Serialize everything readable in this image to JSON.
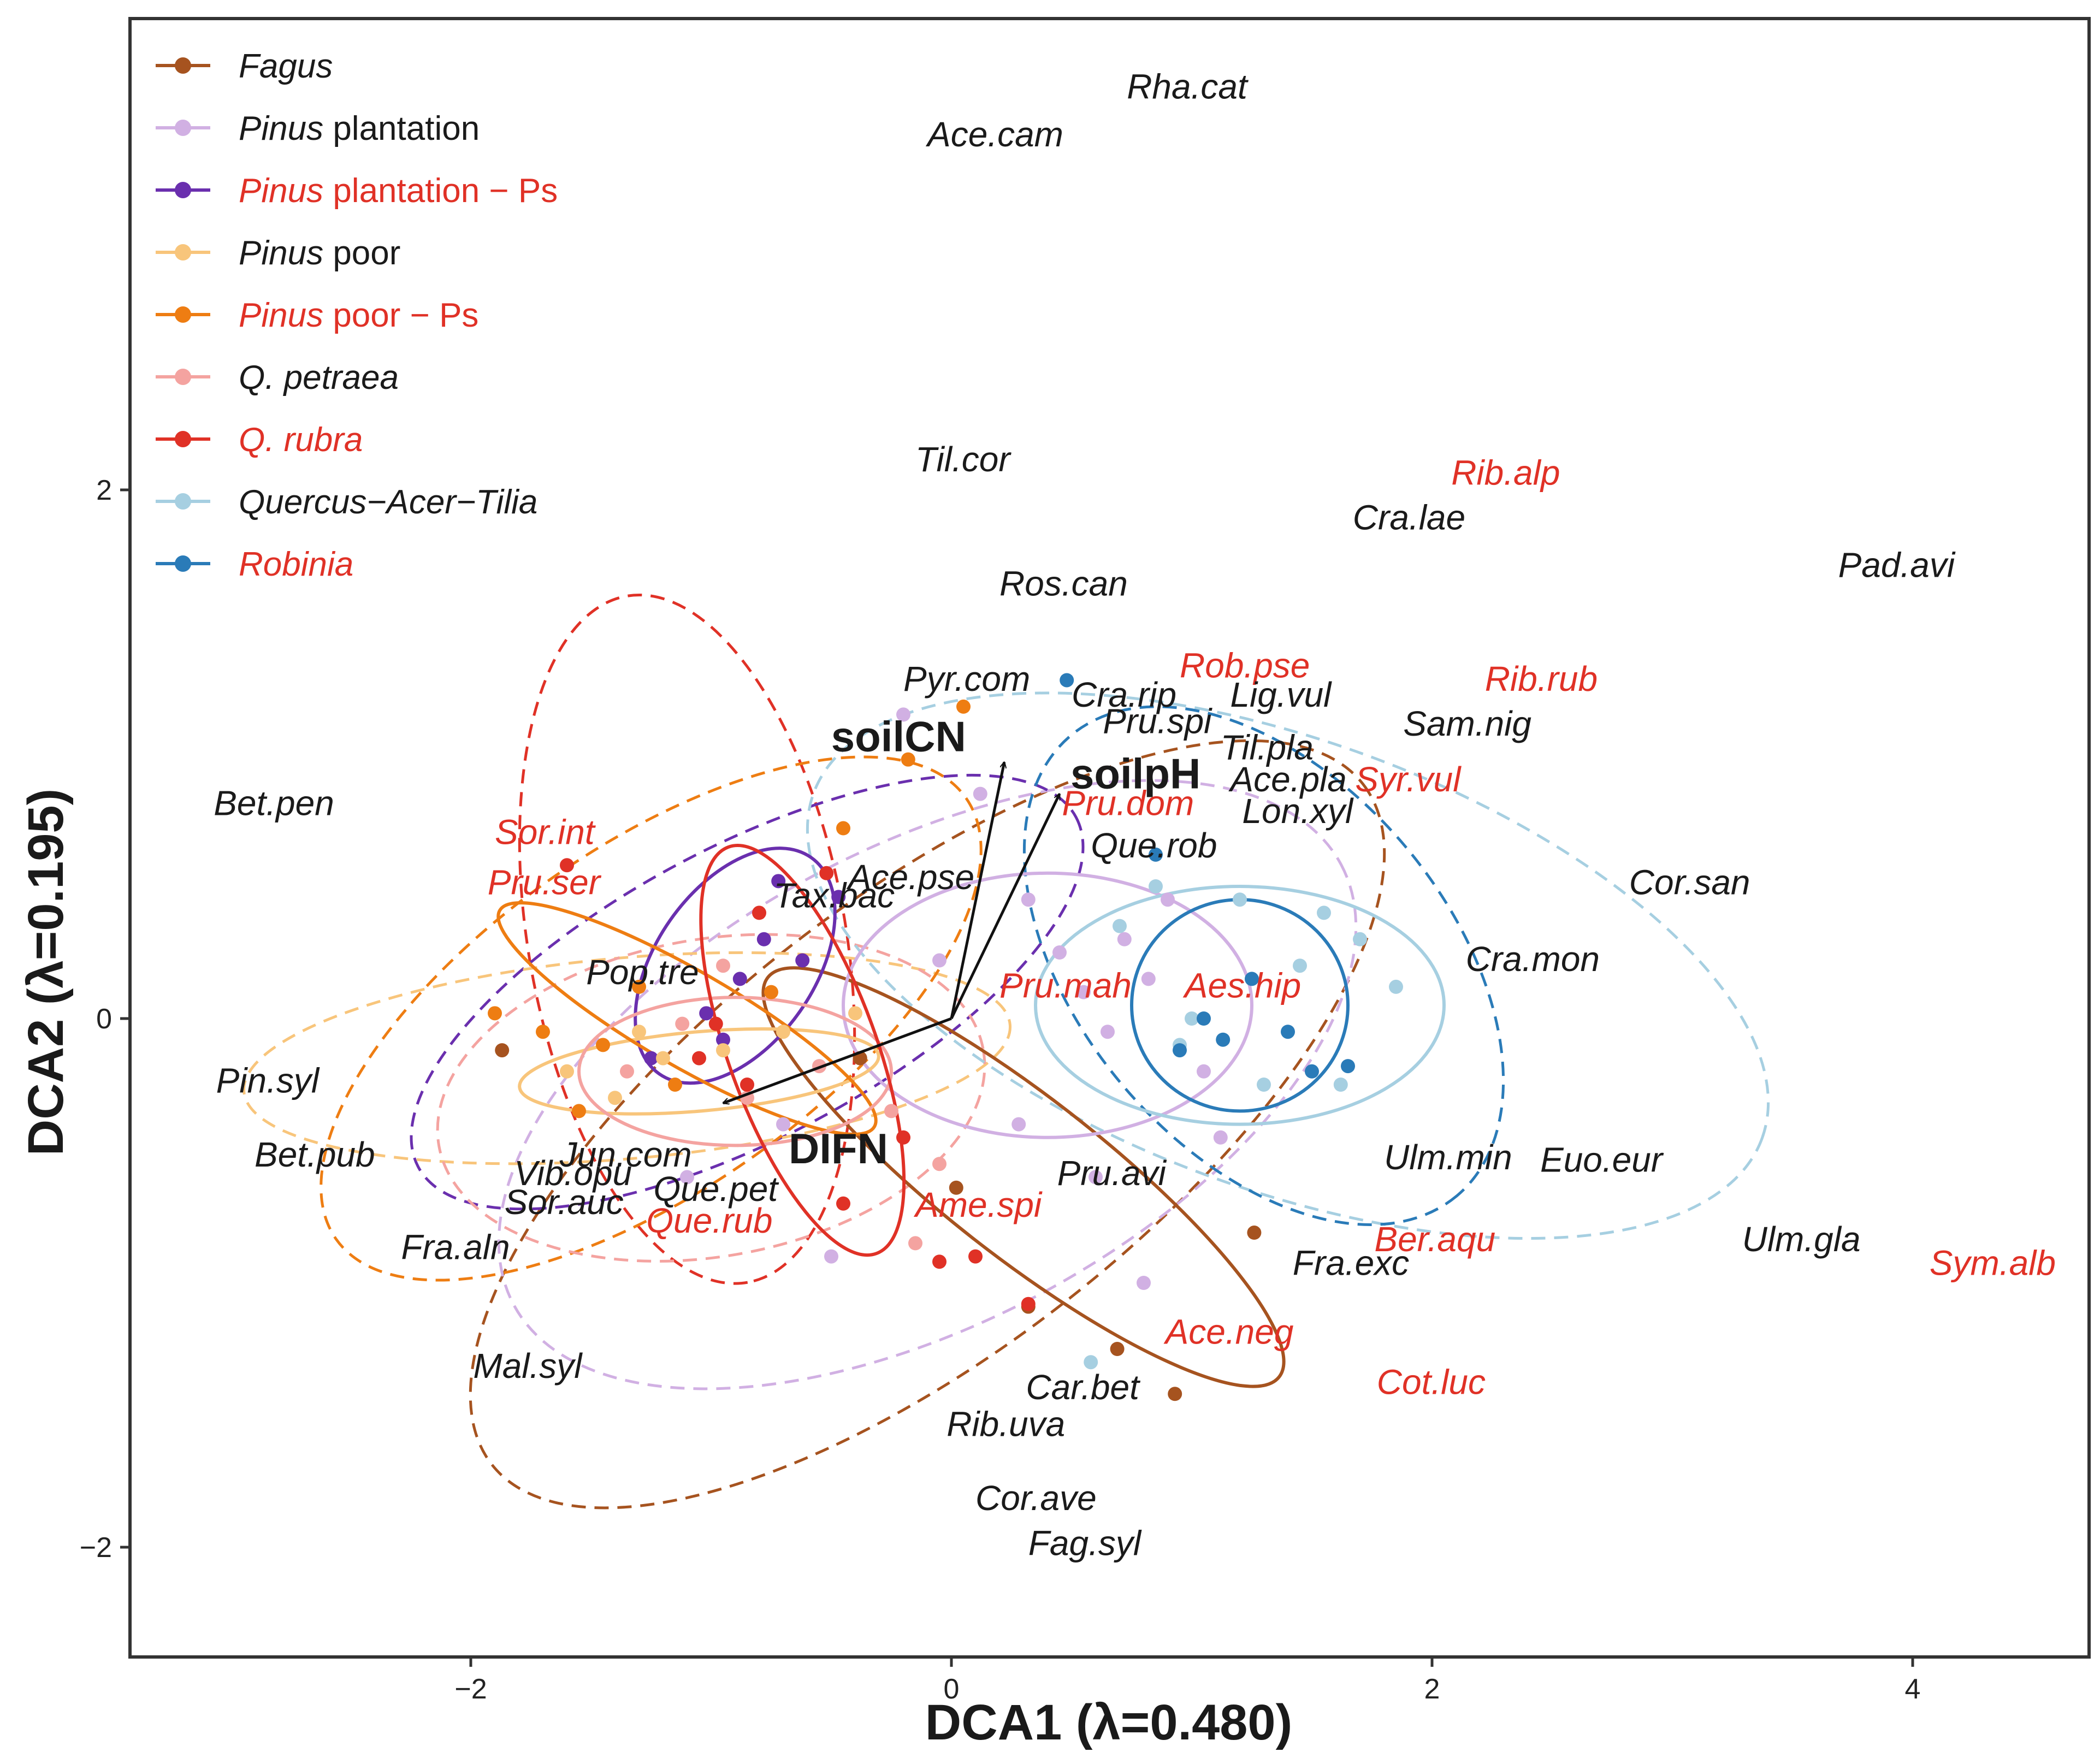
{
  "chart_data": {
    "type": "scatter",
    "title": "",
    "xlabel": "DCA1 (λ=0.480)",
    "ylabel": "DCA2 (λ=0.195)",
    "xlim": [
      -3.1,
      4.7
    ],
    "ylim": [
      -2.4,
      3.75
    ],
    "xticks": [
      -2,
      0,
      2,
      4
    ],
    "xtick_labels": [
      "−2",
      "0",
      "2",
      "4"
    ],
    "yticks": [
      -2,
      0,
      2
    ],
    "ytick_labels": [
      "−2",
      "0",
      "2"
    ],
    "grid": false,
    "legend_position": "top-left",
    "legend": [
      {
        "key": "fagus",
        "italic": "Fagus",
        "rest": "",
        "color": "#a6531f",
        "label_color": "#1a1a1a"
      },
      {
        "key": "pinusplant",
        "italic": "Pinus",
        "rest": " plantation",
        "color": "#d1b0e3",
        "label_color": "#1a1a1a"
      },
      {
        "key": "pinusplantps",
        "italic": "Pinus",
        "rest": " plantation − Ps",
        "color": "#6a2fae",
        "label_color": "#e03126"
      },
      {
        "key": "pinuspoor",
        "italic": "Pinus",
        "rest": " poor",
        "color": "#f8c57b",
        "label_color": "#1a1a1a"
      },
      {
        "key": "pinuspoorps",
        "italic": "Pinus",
        "rest": " poor − Ps",
        "color": "#ee7d12",
        "label_color": "#e03126"
      },
      {
        "key": "qpetraea",
        "italic": "Q. petraea",
        "rest": "",
        "color": "#f4a3a0",
        "label_color": "#1a1a1a"
      },
      {
        "key": "qrubra",
        "italic": "Q. rubra",
        "rest": "",
        "color": "#e03126",
        "label_color": "#e03126"
      },
      {
        "key": "qat",
        "italic": "Quercus−Acer−Tilia",
        "rest": "",
        "color": "#a6cfe1",
        "label_color": "#1a1a1a"
      },
      {
        "key": "robinia",
        "italic": "Robinia",
        "rest": "",
        "color": "#2a7bb8",
        "label_color": "#e03126"
      }
    ],
    "env_vectors": [
      {
        "name": "soilCN",
        "x": 0.22,
        "y": 0.97
      },
      {
        "name": "soilpH",
        "x": 0.45,
        "y": 0.85
      },
      {
        "name": "DIFN",
        "x": -0.95,
        "y": -0.32
      }
    ],
    "species": [
      {
        "name": "Rha.cat",
        "x": 0.73,
        "y": 3.48,
        "color": "#1a1a1a"
      },
      {
        "name": "Ace.cam",
        "x": -0.1,
        "y": 3.3,
        "color": "#1a1a1a"
      },
      {
        "name": "Til.cor",
        "x": -0.15,
        "y": 2.07,
        "color": "#1a1a1a"
      },
      {
        "name": "Rib.alp",
        "x": 2.08,
        "y": 2.02,
        "color": "#e03126"
      },
      {
        "name": "Cra.lae",
        "x": 1.67,
        "y": 1.85,
        "color": "#1a1a1a"
      },
      {
        "name": "Pad.avi",
        "x": 3.69,
        "y": 1.67,
        "color": "#1a1a1a"
      },
      {
        "name": "Ros.can",
        "x": 0.2,
        "y": 1.6,
        "color": "#1a1a1a"
      },
      {
        "name": "Rob.pse",
        "x": 0.95,
        "y": 1.29,
        "color": "#e03126"
      },
      {
        "name": "Rib.rub",
        "x": 2.22,
        "y": 1.24,
        "color": "#e03126"
      },
      {
        "name": "Pyr.com",
        "x": -0.2,
        "y": 1.24,
        "color": "#1a1a1a"
      },
      {
        "name": "Cra.rip",
        "x": 0.5,
        "y": 1.18,
        "color": "#1a1a1a"
      },
      {
        "name": "Lig.vul",
        "x": 1.16,
        "y": 1.18,
        "color": "#1a1a1a"
      },
      {
        "name": "Pru.spi",
        "x": 0.63,
        "y": 1.08,
        "color": "#1a1a1a"
      },
      {
        "name": "Sam.nig",
        "x": 1.88,
        "y": 1.07,
        "color": "#1a1a1a"
      },
      {
        "name": "Til.pla",
        "x": 1.12,
        "y": 0.98,
        "color": "#1a1a1a"
      },
      {
        "name": "Ace.pla",
        "x": 1.16,
        "y": 0.86,
        "color": "#1a1a1a"
      },
      {
        "name": "Syr.vul",
        "x": 1.68,
        "y": 0.86,
        "color": "#e03126"
      },
      {
        "name": "Bet.pen",
        "x": -3.07,
        "y": 0.77,
        "color": "#1a1a1a"
      },
      {
        "name": "Pru.dom",
        "x": 0.46,
        "y": 0.77,
        "color": "#e03126"
      },
      {
        "name": "Lon.xyl",
        "x": 1.21,
        "y": 0.74,
        "color": "#1a1a1a"
      },
      {
        "name": "Sor.int",
        "x": -1.9,
        "y": 0.66,
        "color": "#e03126"
      },
      {
        "name": "Que.rob",
        "x": 0.58,
        "y": 0.61,
        "color": "#1a1a1a"
      },
      {
        "name": "Pru.ser",
        "x": -1.93,
        "y": 0.47,
        "color": "#e03126"
      },
      {
        "name": "Ace.pse",
        "x": -0.43,
        "y": 0.49,
        "color": "#1a1a1a"
      },
      {
        "name": "Cor.san",
        "x": 2.82,
        "y": 0.47,
        "color": "#1a1a1a"
      },
      {
        "name": "Tax.bac",
        "x": -0.74,
        "y": 0.42,
        "color": "#1a1a1a"
      },
      {
        "name": "Pop.tre",
        "x": -1.52,
        "y": 0.13,
        "color": "#1a1a1a"
      },
      {
        "name": "Cra.mon",
        "x": 2.14,
        "y": 0.18,
        "color": "#1a1a1a"
      },
      {
        "name": "Pru.mah",
        "x": 0.2,
        "y": 0.08,
        "color": "#e03126"
      },
      {
        "name": "Aes.hip",
        "x": 0.97,
        "y": 0.08,
        "color": "#e03126"
      },
      {
        "name": "Pin.syl",
        "x": -3.06,
        "y": -0.28,
        "color": "#1a1a1a"
      },
      {
        "name": "Jun.com",
        "x": -1.63,
        "y": -0.56,
        "color": "#1a1a1a"
      },
      {
        "name": "Ulm.min",
        "x": 1.8,
        "y": -0.57,
        "color": "#1a1a1a"
      },
      {
        "name": "Bet.pub",
        "x": -2.9,
        "y": -0.56,
        "color": "#1a1a1a"
      },
      {
        "name": "Euo.eur",
        "x": 2.45,
        "y": -0.58,
        "color": "#1a1a1a"
      },
      {
        "name": "Vib.opu",
        "x": -1.82,
        "y": -0.63,
        "color": "#1a1a1a"
      },
      {
        "name": "Pru.avi",
        "x": 0.44,
        "y": -0.63,
        "color": "#1a1a1a"
      },
      {
        "name": "Que.pet",
        "x": -1.24,
        "y": -0.69,
        "color": "#1a1a1a"
      },
      {
        "name": "Sor.auc",
        "x": -1.86,
        "y": -0.74,
        "color": "#1a1a1a"
      },
      {
        "name": "Ame.spi",
        "x": -0.15,
        "y": -0.75,
        "color": "#e03126"
      },
      {
        "name": "Que.rub",
        "x": -1.27,
        "y": -0.81,
        "color": "#e03126"
      },
      {
        "name": "Ber.aqu",
        "x": 1.76,
        "y": -0.88,
        "color": "#e03126"
      },
      {
        "name": "Ulm.gla",
        "x": 3.29,
        "y": -0.88,
        "color": "#1a1a1a"
      },
      {
        "name": "Fra.aln",
        "x": -2.29,
        "y": -0.91,
        "color": "#1a1a1a"
      },
      {
        "name": "Sym.alb",
        "x": 4.07,
        "y": -0.97,
        "color": "#e03126"
      },
      {
        "name": "Fra.exc",
        "x": 1.42,
        "y": -0.97,
        "color": "#1a1a1a"
      },
      {
        "name": "Ace.neg",
        "x": 0.89,
        "y": -1.23,
        "color": "#e03126"
      },
      {
        "name": "Mal.syl",
        "x": -1.99,
        "y": -1.36,
        "color": "#1a1a1a"
      },
      {
        "name": "Cot.luc",
        "x": 1.77,
        "y": -1.42,
        "color": "#e03126"
      },
      {
        "name": "Car.bet",
        "x": 0.31,
        "y": -1.44,
        "color": "#1a1a1a"
      },
      {
        "name": "Rib.uva",
        "x": -0.02,
        "y": -1.58,
        "color": "#1a1a1a"
      },
      {
        "name": "Cor.ave",
        "x": 0.1,
        "y": -1.86,
        "color": "#1a1a1a"
      },
      {
        "name": "Fag.syl",
        "x": 0.32,
        "y": -2.03,
        "color": "#1a1a1a"
      }
    ],
    "ellipses": [
      {
        "group": "qrubra",
        "cx": -1.1,
        "cy": 0.3,
        "rx": 1.45,
        "ry": 0.6,
        "angle": -80,
        "dashed": true
      },
      {
        "group": "fagus",
        "cx": -0.1,
        "cy": -0.4,
        "rx": 2.3,
        "ry": 0.85,
        "angle": 38,
        "dashed": true
      },
      {
        "group": "pinusplant",
        "cx": -0.1,
        "cy": -0.25,
        "rx": 1.95,
        "ry": 0.9,
        "angle": 28,
        "dashed": true
      },
      {
        "group": "pinusplantps",
        "cx": -0.85,
        "cy": 0.1,
        "rx": 1.55,
        "ry": 0.55,
        "angle": 28,
        "dashed": true
      },
      {
        "group": "pinuspoor",
        "cx": -1.35,
        "cy": -0.15,
        "rx": 1.6,
        "ry": 0.38,
        "angle": 5,
        "dashed": true
      },
      {
        "group": "pinuspoorps",
        "cx": -1.25,
        "cy": 0.0,
        "rx": 1.6,
        "ry": 0.65,
        "angle": 35,
        "dashed": true
      },
      {
        "group": "qpetraea",
        "cx": -1.0,
        "cy": -0.3,
        "rx": 1.15,
        "ry": 0.6,
        "angle": 10,
        "dashed": true
      },
      {
        "group": "qat",
        "cx": 1.4,
        "cy": 0.2,
        "rx": 2.1,
        "ry": 0.85,
        "angle": -20,
        "dashed": true
      },
      {
        "group": "robinia",
        "cx": 1.3,
        "cy": 0.2,
        "rx": 1.25,
        "ry": 0.7,
        "angle": -50,
        "dashed": true
      },
      {
        "group": "fagus",
        "cx": 0.3,
        "cy": -0.6,
        "rx": 1.35,
        "ry": 0.3,
        "angle": -38,
        "dashed": false
      },
      {
        "group": "pinusplant",
        "cx": 0.4,
        "cy": 0.05,
        "rx": 0.85,
        "ry": 0.5,
        "angle": 0,
        "dashed": false
      },
      {
        "group": "pinusplantps",
        "cx": -0.9,
        "cy": 0.2,
        "rx": 0.55,
        "ry": 0.3,
        "angle": 55,
        "dashed": false
      },
      {
        "group": "pinuspoor",
        "cx": -1.05,
        "cy": -0.2,
        "rx": 0.75,
        "ry": 0.15,
        "angle": 5,
        "dashed": false
      },
      {
        "group": "pinuspoorps",
        "cx": -1.1,
        "cy": 0.0,
        "rx": 0.9,
        "ry": 0.18,
        "angle": -30,
        "dashed": false
      },
      {
        "group": "qpetraea",
        "cx": -0.9,
        "cy": -0.2,
        "rx": 0.65,
        "ry": 0.28,
        "angle": 0,
        "dashed": false
      },
      {
        "group": "qrubra",
        "cx": -0.62,
        "cy": -0.12,
        "rx": 0.9,
        "ry": 0.28,
        "angle": -70,
        "dashed": false
      },
      {
        "group": "qat",
        "cx": 1.2,
        "cy": 0.05,
        "rx": 0.85,
        "ry": 0.45,
        "angle": 0,
        "dashed": false
      },
      {
        "group": "robinia",
        "cx": 1.2,
        "cy": 0.05,
        "rx": 0.45,
        "ry": 0.4,
        "angle": 0,
        "dashed": false
      }
    ],
    "points": [
      {
        "group": "fagus",
        "x": -1.87,
        "y": -0.12
      },
      {
        "group": "fagus",
        "x": -0.38,
        "y": -0.15
      },
      {
        "group": "fagus",
        "x": 0.02,
        "y": -0.64
      },
      {
        "group": "fagus",
        "x": 0.32,
        "y": -1.09
      },
      {
        "group": "fagus",
        "x": 0.69,
        "y": -1.25
      },
      {
        "group": "fagus",
        "x": 0.93,
        "y": -1.42
      },
      {
        "group": "fagus",
        "x": 1.26,
        "y": -0.81
      },
      {
        "group": "pinusplant",
        "x": -1.1,
        "y": -0.6
      },
      {
        "group": "pinusplant",
        "x": -0.7,
        "y": -0.4
      },
      {
        "group": "pinusplant",
        "x": -0.5,
        "y": -0.9
      },
      {
        "group": "pinusplant",
        "x": -0.2,
        "y": 1.15
      },
      {
        "group": "pinusplant",
        "x": 0.12,
        "y": 0.85
      },
      {
        "group": "pinusplant",
        "x": 0.32,
        "y": 0.45
      },
      {
        "group": "pinusplant",
        "x": 0.45,
        "y": 0.25
      },
      {
        "group": "pinusplant",
        "x": 0.55,
        "y": 0.1
      },
      {
        "group": "pinusplant",
        "x": 0.65,
        "y": -0.05
      },
      {
        "group": "pinusplant",
        "x": 0.72,
        "y": 0.3
      },
      {
        "group": "pinusplant",
        "x": 0.82,
        "y": 0.15
      },
      {
        "group": "pinusplant",
        "x": 0.9,
        "y": 0.45
      },
      {
        "group": "pinusplant",
        "x": 1.05,
        "y": -0.2
      },
      {
        "group": "pinusplant",
        "x": 1.12,
        "y": -0.45
      },
      {
        "group": "pinusplant",
        "x": 0.6,
        "y": -0.6
      },
      {
        "group": "pinusplant",
        "x": 0.28,
        "y": -0.4
      },
      {
        "group": "pinusplant",
        "x": -0.05,
        "y": 0.22
      },
      {
        "group": "pinusplant",
        "x": 0.8,
        "y": -1.0
      },
      {
        "group": "pinusplantps",
        "x": -1.02,
        "y": 0.02
      },
      {
        "group": "pinusplantps",
        "x": -0.88,
        "y": 0.15
      },
      {
        "group": "pinusplantps",
        "x": -0.78,
        "y": 0.3
      },
      {
        "group": "pinusplantps",
        "x": -0.62,
        "y": 0.22
      },
      {
        "group": "pinusplantps",
        "x": -0.47,
        "y": 0.46
      },
      {
        "group": "pinusplantps",
        "x": -0.72,
        "y": 0.52
      },
      {
        "group": "pinusplantps",
        "x": -0.95,
        "y": -0.08
      },
      {
        "group": "pinusplantps",
        "x": -1.25,
        "y": -0.15
      },
      {
        "group": "pinuspoor",
        "x": -1.6,
        "y": -0.2
      },
      {
        "group": "pinuspoor",
        "x": -1.4,
        "y": -0.3
      },
      {
        "group": "pinuspoor",
        "x": -1.2,
        "y": -0.15
      },
      {
        "group": "pinuspoor",
        "x": -0.95,
        "y": -0.12
      },
      {
        "group": "pinuspoor",
        "x": -0.7,
        "y": -0.05
      },
      {
        "group": "pinuspoor",
        "x": -0.4,
        "y": 0.02
      },
      {
        "group": "pinuspoor",
        "x": -1.3,
        "y": -0.05
      },
      {
        "group": "pinuspoorps",
        "x": -1.9,
        "y": 0.02
      },
      {
        "group": "pinuspoorps",
        "x": -1.55,
        "y": -0.35
      },
      {
        "group": "pinuspoorps",
        "x": -1.45,
        "y": -0.1
      },
      {
        "group": "pinuspoorps",
        "x": -1.3,
        "y": 0.12
      },
      {
        "group": "pinuspoorps",
        "x": -1.15,
        "y": -0.25
      },
      {
        "group": "pinuspoorps",
        "x": -0.75,
        "y": 0.1
      },
      {
        "group": "pinuspoorps",
        "x": -0.18,
        "y": 0.98
      },
      {
        "group": "pinuspoorps",
        "x": -0.45,
        "y": 0.72
      },
      {
        "group": "pinuspoorps",
        "x": 0.05,
        "y": 1.18
      },
      {
        "group": "pinuspoorps",
        "x": -1.7,
        "y": -0.05
      },
      {
        "group": "qpetraea",
        "x": -1.35,
        "y": -0.2
      },
      {
        "group": "qpetraea",
        "x": -1.12,
        "y": -0.02
      },
      {
        "group": "qpetraea",
        "x": -0.85,
        "y": -0.3
      },
      {
        "group": "qpetraea",
        "x": -0.55,
        "y": -0.18
      },
      {
        "group": "qpetraea",
        "x": -0.25,
        "y": -0.35
      },
      {
        "group": "qpetraea",
        "x": -0.05,
        "y": -0.55
      },
      {
        "group": "qpetraea",
        "x": -0.15,
        "y": -0.85
      },
      {
        "group": "qpetraea",
        "x": -0.95,
        "y": 0.2
      },
      {
        "group": "qrubra",
        "x": -1.6,
        "y": 0.58
      },
      {
        "group": "qrubra",
        "x": -0.52,
        "y": 0.55
      },
      {
        "group": "qrubra",
        "x": -0.8,
        "y": 0.4
      },
      {
        "group": "qrubra",
        "x": -0.98,
        "y": -0.02
      },
      {
        "group": "qrubra",
        "x": -1.05,
        "y": -0.15
      },
      {
        "group": "qrubra",
        "x": -0.85,
        "y": -0.25
      },
      {
        "group": "qrubra",
        "x": -0.45,
        "y": -0.7
      },
      {
        "group": "qrubra",
        "x": -0.05,
        "y": -0.92
      },
      {
        "group": "qrubra",
        "x": 0.1,
        "y": -0.9
      },
      {
        "group": "qrubra",
        "x": 0.32,
        "y": -1.08
      },
      {
        "group": "qrubra",
        "x": -0.2,
        "y": -0.45
      },
      {
        "group": "qat",
        "x": 1.7,
        "y": 0.3
      },
      {
        "group": "qat",
        "x": 1.85,
        "y": 0.12
      },
      {
        "group": "qat",
        "x": 1.62,
        "y": -0.25
      },
      {
        "group": "qat",
        "x": 1.3,
        "y": -0.25
      },
      {
        "group": "qat",
        "x": 1.0,
        "y": 0.0
      },
      {
        "group": "qat",
        "x": 1.2,
        "y": 0.45
      },
      {
        "group": "qat",
        "x": 0.85,
        "y": 0.5
      },
      {
        "group": "qat",
        "x": 0.7,
        "y": 0.35
      },
      {
        "group": "qat",
        "x": 1.45,
        "y": 0.2
      },
      {
        "group": "qat",
        "x": 1.55,
        "y": 0.4
      },
      {
        "group": "qat",
        "x": 0.95,
        "y": -0.1
      },
      {
        "group": "qat",
        "x": 0.58,
        "y": -1.3
      },
      {
        "group": "robinia",
        "x": 0.48,
        "y": 1.28
      },
      {
        "group": "robinia",
        "x": 0.85,
        "y": 0.62
      },
      {
        "group": "robinia",
        "x": 1.25,
        "y": 0.15
      },
      {
        "group": "robinia",
        "x": 1.4,
        "y": -0.05
      },
      {
        "group": "robinia",
        "x": 1.5,
        "y": -0.2
      },
      {
        "group": "robinia",
        "x": 1.65,
        "y": -0.18
      },
      {
        "group": "robinia",
        "x": 1.13,
        "y": -0.08
      },
      {
        "group": "robinia",
        "x": 0.95,
        "y": -0.12
      },
      {
        "group": "robinia",
        "x": 1.05,
        "y": 0.0
      }
    ]
  }
}
